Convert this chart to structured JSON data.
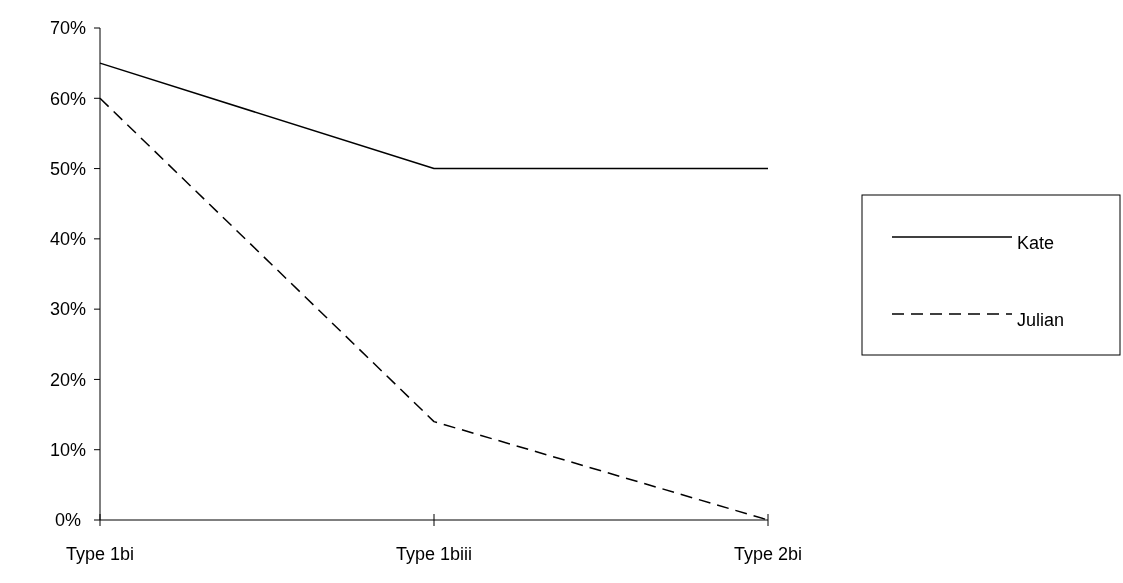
{
  "chart_data": {
    "type": "line",
    "categories": [
      "Type 1bi",
      "Type 1biii",
      "Type 2bi"
    ],
    "series": [
      {
        "name": "Kate",
        "color": "#000000",
        "values": [
          65,
          50,
          50
        ],
        "line_style": "solid"
      },
      {
        "name": "Julian",
        "color": "#000000",
        "values": [
          60,
          14,
          0
        ],
        "line_style": "dashed"
      }
    ],
    "ylim": [
      0,
      70
    ],
    "yticks": [
      {
        "value": 0,
        "label": "0%"
      },
      {
        "value": 10,
        "label": "10%"
      },
      {
        "value": 20,
        "label": "20%"
      },
      {
        "value": 30,
        "label": "30%"
      },
      {
        "value": 40,
        "label": "40%"
      },
      {
        "value": 50,
        "label": "50%"
      },
      {
        "value": 60,
        "label": "60%"
      },
      {
        "value": 70,
        "label": "70%"
      }
    ],
    "grid": false,
    "legend": "right"
  }
}
